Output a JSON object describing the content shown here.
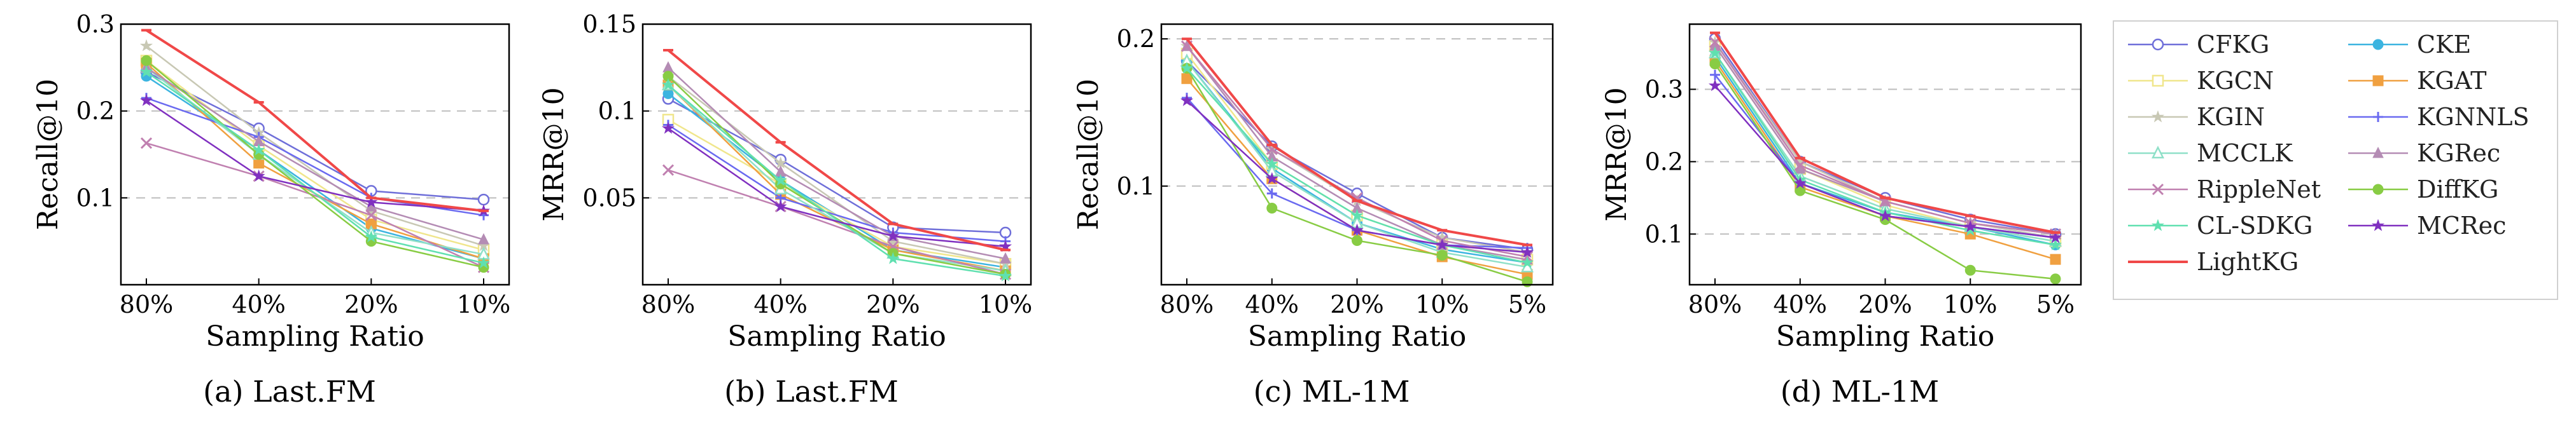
{
  "colors": {
    "CFKG": "#6f6fd9",
    "CKE": "#3cb4e0",
    "KGCN": "#f0e68c",
    "KGAT": "#f0a040",
    "KGIN": "#c8c8b4",
    "KGNNLS": "#6a6af0",
    "MCCLK": "#8fe0c8",
    "KGRec": "#b48cb4",
    "RippleNet": "#c080b0",
    "DiffKG": "#88cc44",
    "CL-SDKG": "#60e0b0",
    "MCRec": "#8030c0",
    "LightKG": "#f04848"
  },
  "legend": {
    "items": [
      "CFKG",
      "CKE",
      "KGCN",
      "KGAT",
      "KGIN",
      "KGNNLS",
      "MCCLK",
      "KGRec",
      "RippleNet",
      "DiffKG",
      "CL-SDKG",
      "MCRec",
      "LightKG"
    ]
  },
  "chart_data": [
    {
      "type": "line",
      "caption": "(a) Last.FM",
      "xlabel": "Sampling Ratio",
      "ylabel": "Recall@10",
      "categories": [
        "80%",
        "40%",
        "20%",
        "10%"
      ],
      "ylim": [
        0.0,
        0.3
      ],
      "yticks": [
        0.1,
        0.2,
        0.3
      ],
      "ytick_labels": [
        "0.1",
        "0.2",
        "0.3"
      ],
      "grid": true,
      "series": [
        {
          "name": "CFKG",
          "values": [
            0.245,
            0.18,
            0.108,
            0.098
          ]
        },
        {
          "name": "CKE",
          "values": [
            0.24,
            0.155,
            0.065,
            0.03
          ]
        },
        {
          "name": "KGCN",
          "values": [
            0.258,
            0.16,
            0.075,
            0.04
          ]
        },
        {
          "name": "KGAT",
          "values": [
            0.255,
            0.14,
            0.07,
            0.03
          ]
        },
        {
          "name": "KGIN",
          "values": [
            0.275,
            0.175,
            0.085,
            0.045
          ]
        },
        {
          "name": "KGNNLS",
          "values": [
            0.215,
            0.17,
            0.1,
            0.08
          ]
        },
        {
          "name": "MCCLK",
          "values": [
            0.25,
            0.15,
            0.06,
            0.035
          ]
        },
        {
          "name": "KGRec",
          "values": [
            0.25,
            0.165,
            0.09,
            0.052
          ]
        },
        {
          "name": "RippleNet",
          "values": [
            0.163,
            0.125,
            0.08,
            0.02
          ]
        },
        {
          "name": "DiffKG",
          "values": [
            0.258,
            0.15,
            0.05,
            0.02
          ]
        },
        {
          "name": "CL-SDKG",
          "values": [
            0.245,
            0.155,
            0.055,
            0.025
          ]
        },
        {
          "name": "MCRec",
          "values": [
            0.212,
            0.125,
            0.095,
            0.085
          ]
        },
        {
          "name": "LightKG",
          "values": [
            0.293,
            0.21,
            0.1,
            0.085
          ]
        }
      ]
    },
    {
      "type": "line",
      "caption": "(b) Last.FM",
      "xlabel": "Sampling Ratio",
      "ylabel": "MRR@10",
      "categories": [
        "80%",
        "40%",
        "20%",
        "10%"
      ],
      "ylim": [
        0.0,
        0.15
      ],
      "yticks": [
        0.05,
        0.1,
        0.15
      ],
      "ytick_labels": [
        "0.05",
        "0.1",
        "0.15"
      ],
      "grid": true,
      "series": [
        {
          "name": "CFKG",
          "values": [
            0.107,
            0.072,
            0.033,
            0.03
          ]
        },
        {
          "name": "CKE",
          "values": [
            0.11,
            0.06,
            0.02,
            0.01
          ]
        },
        {
          "name": "KGCN",
          "values": [
            0.095,
            0.058,
            0.022,
            0.012
          ]
        },
        {
          "name": "KGAT",
          "values": [
            0.115,
            0.052,
            0.02,
            0.008
          ]
        },
        {
          "name": "KGIN",
          "values": [
            0.12,
            0.07,
            0.025,
            0.012
          ]
        },
        {
          "name": "KGNNLS",
          "values": [
            0.092,
            0.05,
            0.03,
            0.025
          ]
        },
        {
          "name": "MCCLK",
          "values": [
            0.115,
            0.055,
            0.018,
            0.008
          ]
        },
        {
          "name": "KGRec",
          "values": [
            0.125,
            0.065,
            0.028,
            0.015
          ]
        },
        {
          "name": "RippleNet",
          "values": [
            0.066,
            0.045,
            0.022,
            0.006
          ]
        },
        {
          "name": "DiffKG",
          "values": [
            0.12,
            0.058,
            0.018,
            0.006
          ]
        },
        {
          "name": "CL-SDKG",
          "values": [
            0.115,
            0.06,
            0.015,
            0.005
          ]
        },
        {
          "name": "MCRec",
          "values": [
            0.09,
            0.045,
            0.028,
            0.022
          ]
        },
        {
          "name": "LightKG",
          "values": [
            0.135,
            0.082,
            0.035,
            0.02
          ]
        }
      ]
    },
    {
      "type": "line",
      "caption": "(c) ML-1M",
      "xlabel": "Sampling Ratio",
      "ylabel": "Recall@10",
      "categories": [
        "80%",
        "40%",
        "20%",
        "10%",
        "5%"
      ],
      "ylim": [
        0.033,
        0.21
      ],
      "yticks": [
        0.1,
        0.2
      ],
      "ytick_labels": [
        "0.1",
        "0.2"
      ],
      "grid": true,
      "series": [
        {
          "name": "CFKG",
          "values": [
            0.185,
            0.127,
            0.095,
            0.065,
            0.057
          ]
        },
        {
          "name": "CKE",
          "values": [
            0.185,
            0.112,
            0.075,
            0.057,
            0.048
          ]
        },
        {
          "name": "KGCN",
          "values": [
            0.19,
            0.115,
            0.08,
            0.06,
            0.05
          ]
        },
        {
          "name": "KGAT",
          "values": [
            0.173,
            0.105,
            0.07,
            0.052,
            0.04
          ]
        },
        {
          "name": "KGIN",
          "values": [
            0.195,
            0.125,
            0.09,
            0.065,
            0.055
          ]
        },
        {
          "name": "KGNNLS",
          "values": [
            0.16,
            0.095,
            0.07,
            0.06,
            0.058
          ]
        },
        {
          "name": "MCCLK",
          "values": [
            0.185,
            0.11,
            0.075,
            0.055,
            0.045
          ]
        },
        {
          "name": "KGRec",
          "values": [
            0.195,
            0.12,
            0.085,
            0.06,
            0.05
          ]
        },
        {
          "name": "RippleNet",
          "values": [
            0.195,
            0.125,
            0.092,
            0.063,
            0.052
          ]
        },
        {
          "name": "DiffKG",
          "values": [
            0.18,
            0.085,
            0.063,
            0.053,
            0.035
          ]
        },
        {
          "name": "CL-SDKG",
          "values": [
            0.18,
            0.115,
            0.08,
            0.06,
            0.048
          ]
        },
        {
          "name": "MCRec",
          "values": [
            0.158,
            0.105,
            0.07,
            0.06,
            0.055
          ]
        },
        {
          "name": "LightKG",
          "values": [
            0.2,
            0.128,
            0.09,
            0.07,
            0.06
          ]
        }
      ]
    },
    {
      "type": "line",
      "caption": "(d) ML-1M",
      "xlabel": "Sampling Ratio",
      "ylabel": "MRR@10",
      "categories": [
        "80%",
        "40%",
        "20%",
        "10%",
        "5%"
      ],
      "ylim": [
        0.03,
        0.39
      ],
      "yticks": [
        0.1,
        0.2,
        0.3
      ],
      "ytick_labels": [
        "0.1",
        "0.2",
        "0.3"
      ],
      "grid": true,
      "series": [
        {
          "name": "CFKG",
          "values": [
            0.37,
            0.2,
            0.15,
            0.12,
            0.1
          ]
        },
        {
          "name": "CKE",
          "values": [
            0.345,
            0.17,
            0.13,
            0.11,
            0.085
          ]
        },
        {
          "name": "KGCN",
          "values": [
            0.36,
            0.19,
            0.14,
            0.11,
            0.09
          ]
        },
        {
          "name": "KGAT",
          "values": [
            0.34,
            0.165,
            0.125,
            0.1,
            0.065
          ]
        },
        {
          "name": "KGIN",
          "values": [
            0.365,
            0.2,
            0.145,
            0.115,
            0.095
          ]
        },
        {
          "name": "KGNNLS",
          "values": [
            0.32,
            0.17,
            0.125,
            0.11,
            0.095
          ]
        },
        {
          "name": "MCCLK",
          "values": [
            0.35,
            0.18,
            0.135,
            0.11,
            0.09
          ]
        },
        {
          "name": "KGRec",
          "values": [
            0.36,
            0.19,
            0.145,
            0.115,
            0.1
          ]
        },
        {
          "name": "RippleNet",
          "values": [
            0.365,
            0.195,
            0.145,
            0.115,
            0.1
          ]
        },
        {
          "name": "DiffKG",
          "values": [
            0.335,
            0.16,
            0.12,
            0.05,
            0.038
          ]
        },
        {
          "name": "CL-SDKG",
          "values": [
            0.35,
            0.175,
            0.13,
            0.105,
            0.085
          ]
        },
        {
          "name": "MCRec",
          "values": [
            0.305,
            0.17,
            0.125,
            0.11,
            0.095
          ]
        },
        {
          "name": "LightKG",
          "values": [
            0.378,
            0.205,
            0.15,
            0.125,
            0.102
          ]
        }
      ]
    }
  ]
}
